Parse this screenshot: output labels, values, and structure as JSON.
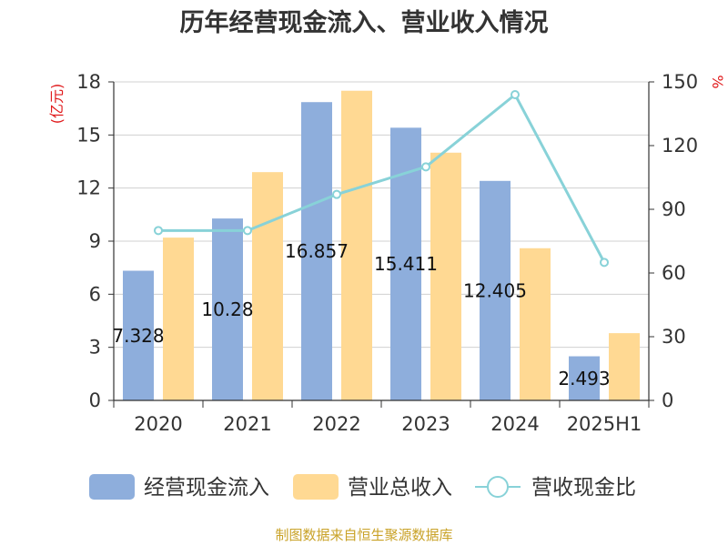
{
  "chart_data": {
    "type": "bar",
    "title": "历年经营现金流入、营业收入情况",
    "categories": [
      "2020",
      "2021",
      "2022",
      "2023",
      "2024",
      "2025H1"
    ],
    "y_left_unit": "(亿元)",
    "y_right_unit": "%",
    "y_left_ticks": [
      "0",
      "3",
      "6",
      "9",
      "12",
      "15",
      "18"
    ],
    "y_right_ticks": [
      "0",
      "30",
      "60",
      "90",
      "120",
      "150"
    ],
    "ylim_left": [
      0,
      18
    ],
    "ylim_right": [
      0,
      150
    ],
    "grid": true,
    "legend_position": "bottom",
    "series": [
      {
        "name": "经营现金流入",
        "type": "bar",
        "axis": "left",
        "color": "#8eaedc",
        "values": [
          7.328,
          10.28,
          16.857,
          15.411,
          12.405,
          2.493
        ],
        "labels": [
          "7.328",
          "10.28",
          "16.857",
          "15.411",
          "12.405",
          "2.493"
        ]
      },
      {
        "name": "营业总收入",
        "type": "bar",
        "axis": "left",
        "color": "#ffd993",
        "values": [
          9.2,
          12.9,
          17.5,
          14.0,
          8.6,
          3.8
        ]
      },
      {
        "name": "营收现金比",
        "type": "line",
        "axis": "right",
        "color": "#88d2d8",
        "values": [
          80,
          80,
          97,
          110,
          144,
          65
        ]
      }
    ]
  },
  "footer": {
    "source": "制图数据来自恒生聚源数据库"
  }
}
